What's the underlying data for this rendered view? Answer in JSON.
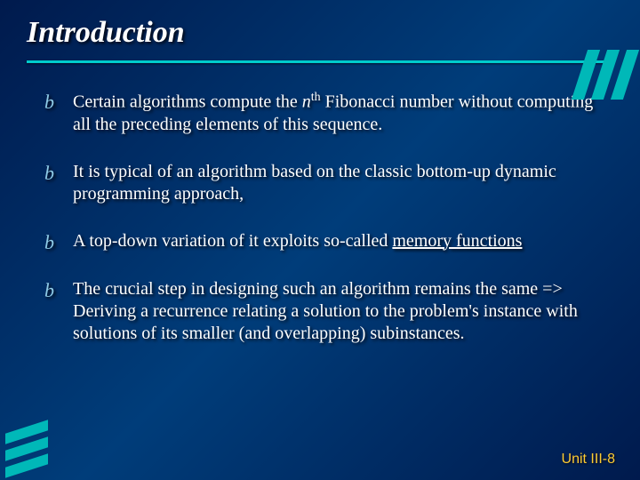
{
  "title": "Introduction",
  "bullets": [
    {
      "html": "Certain algorithms compute the <span class=\"italic\">n</span><sup>th</sup> Fibonacci number without computing all the preceding elements of this sequence."
    },
    {
      "html": "It is typical of an algorithm based on the classic bottom-up dynamic programming approach,"
    },
    {
      "html": "A top-down variation of it exploits so-called <span class=\"underline\">memory functions</span>"
    },
    {
      "html": "The crucial step in designing such an algorithm remains the same => Deriving a recurrence relating a solution to the problem's instance with solutions of its smaller (and overlapping) subinstances."
    }
  ],
  "footer": "Unit III-8",
  "bullet_glyph": "b",
  "colors": {
    "background_gradient": [
      "#001a4d",
      "#003d7a",
      "#001a4d"
    ],
    "title_color": "#ffffff",
    "underline_color": "#00cccc",
    "text_color": "#ffffff",
    "bullet_icon_color": "#8ecae6",
    "footer_color": "#ffcc33",
    "stripe_color": "#00b8b8"
  },
  "typography": {
    "title_fontsize": 34,
    "body_fontsize": 20,
    "footer_fontsize": 16,
    "title_style": "bold italic",
    "font_family": "Times New Roman"
  },
  "decoration": {
    "top_right_stripes": 3,
    "bottom_left_stripes": 3
  }
}
